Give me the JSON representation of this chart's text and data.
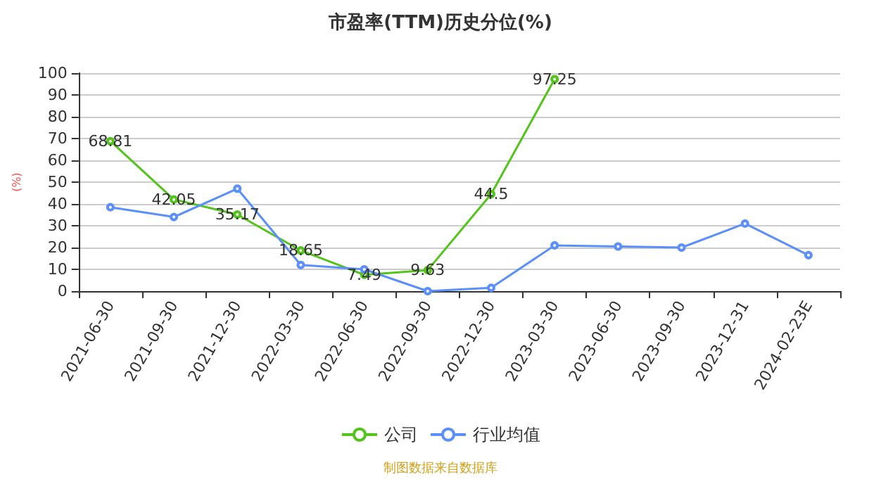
{
  "chart_data": {
    "type": "line",
    "title": "市盈率(TTM)历史分位(%)",
    "ylabel": "(%)",
    "categories": [
      "2021-06-30",
      "2021-09-30",
      "2021-12-30",
      "2022-03-30",
      "2022-06-30",
      "2022-09-30",
      "2022-12-30",
      "2023-03-30",
      "2023-06-30",
      "2023-09-30",
      "2023-12-31",
      "2024-02-23E"
    ],
    "series": [
      {
        "name": "公司",
        "color": "#52c41a",
        "values": [
          68.81,
          42.05,
          35.17,
          18.65,
          7.49,
          9.63,
          44.5,
          97.25,
          null,
          null,
          null,
          null
        ],
        "value_labels": [
          "68.81",
          "42.05",
          "35.17",
          "18.65",
          "7.49",
          "9.63",
          "44.5",
          "97.25",
          null,
          null,
          null,
          null
        ]
      },
      {
        "name": "行业均值",
        "color": "#5b8ff9",
        "values": [
          38.5,
          34,
          47,
          12,
          10,
          0,
          1.5,
          21,
          20.5,
          20,
          31,
          16.5
        ]
      }
    ],
    "ylim": [
      0,
      100
    ],
    "yticks": [
      0,
      10,
      20,
      30,
      40,
      50,
      60,
      70,
      80,
      90,
      100
    ],
    "grid": "y",
    "legend": "bottom",
    "marker": "circle",
    "annotations": [
      "制图数据来自数据库"
    ]
  }
}
